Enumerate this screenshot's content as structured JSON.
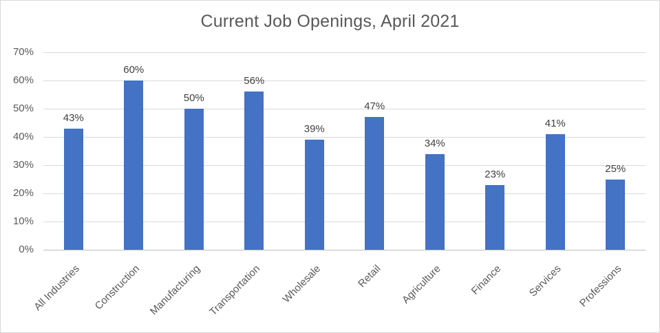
{
  "chart_data": {
    "type": "bar",
    "title": "Current Job Openings, April 2021",
    "categories": [
      "All Industries",
      "Construction",
      "Manufacturing",
      "Transportation",
      "Wholesale",
      "Retail",
      "Agriculture",
      "Finance",
      "Services",
      "Professions"
    ],
    "values": [
      43,
      60,
      50,
      56,
      39,
      47,
      34,
      23,
      41,
      25
    ],
    "data_labels": [
      "43%",
      "60%",
      "50%",
      "56%",
      "39%",
      "47%",
      "34%",
      "23%",
      "41%",
      "25%"
    ],
    "y_ticks": [
      0,
      10,
      20,
      30,
      40,
      50,
      60,
      70
    ],
    "y_tick_labels": [
      "0%",
      "10%",
      "20%",
      "30%",
      "40%",
      "50%",
      "60%",
      "70%"
    ],
    "ylim": [
      0,
      70
    ],
    "xlabel": "",
    "ylabel": "",
    "grid": true,
    "legend": "none",
    "colors": {
      "bar": "#4472C4",
      "title_text": "#595959",
      "axis_text": "#595959",
      "data_label_text": "#404040",
      "gridline": "#d9d9d9",
      "axis_line": "#bfbfbf",
      "background": "#ffffff",
      "frame_border": "#d9d9d9"
    }
  }
}
